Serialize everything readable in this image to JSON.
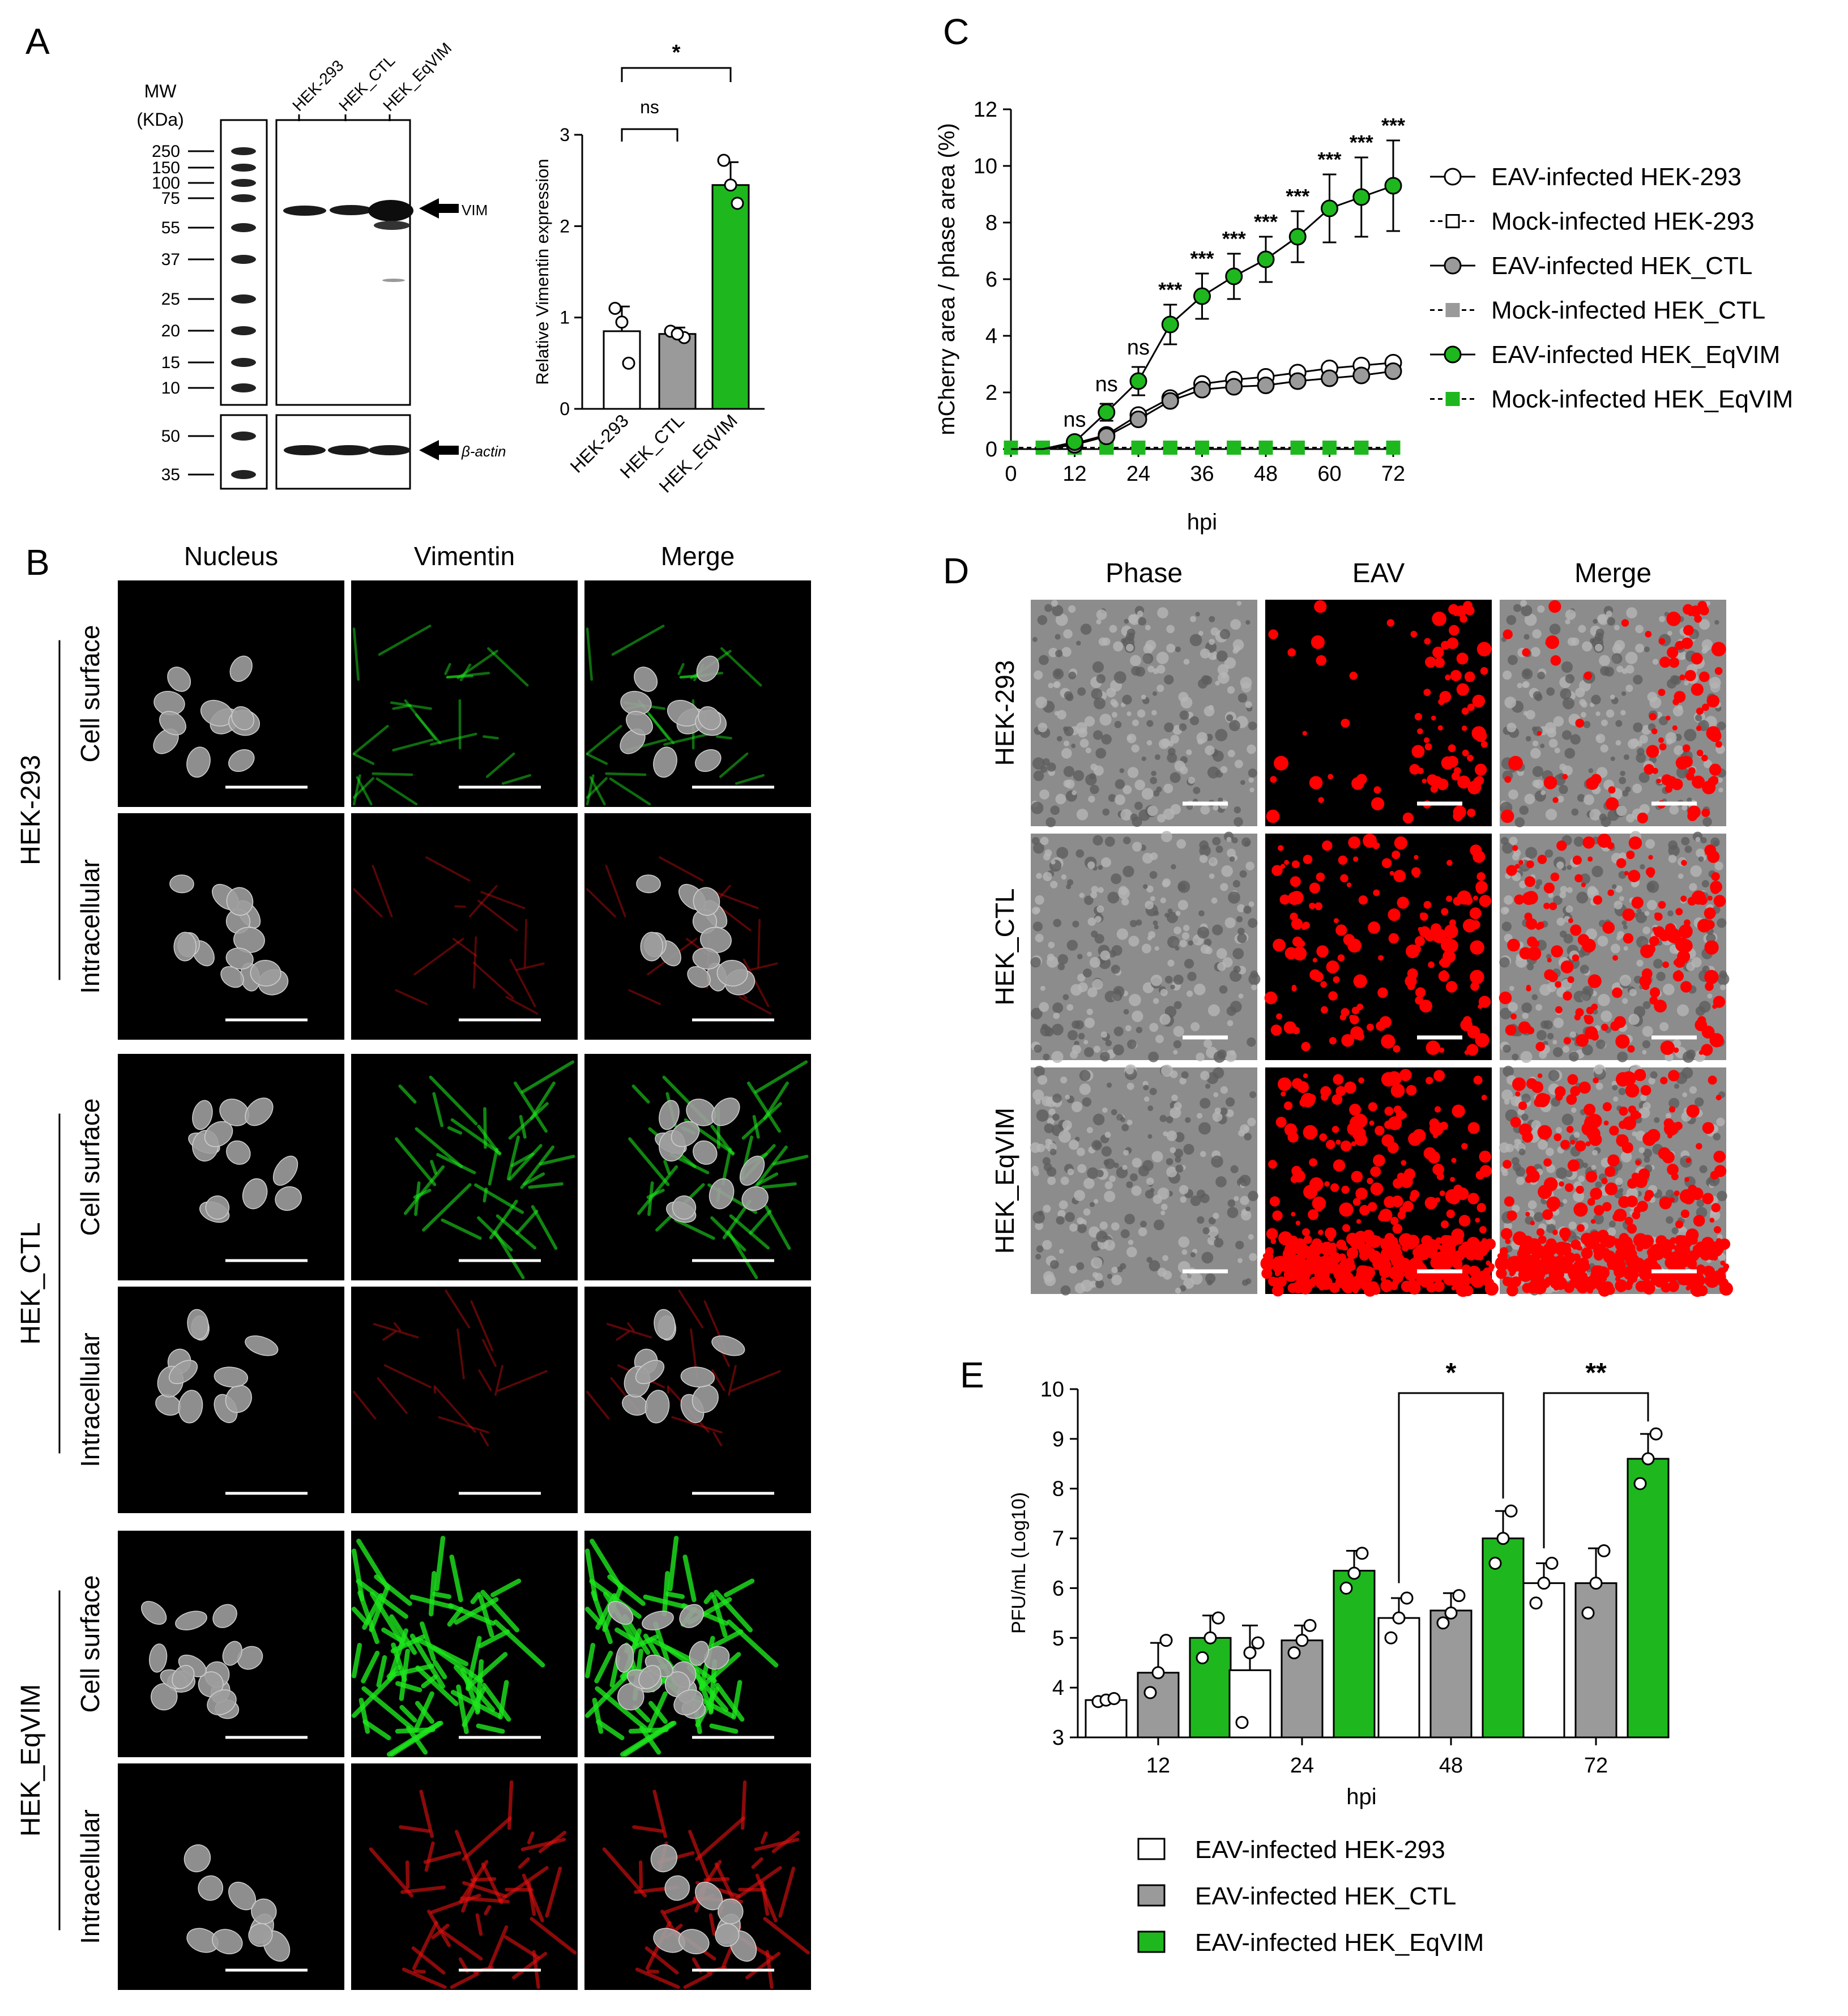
{
  "panels": {
    "A": "A",
    "B": "B",
    "C": "C",
    "D": "D",
    "E": "E"
  },
  "colors": {
    "green": "#1EB81E",
    "grey": "#9A9A9A",
    "white": "#FFFFFF",
    "red": "#FF0000",
    "black": "#000000"
  },
  "panel_a": {
    "mw_label_1": "MW",
    "mw_label_2": "(KDa)",
    "ladder_upper": [
      "250",
      "150",
      "100",
      "75",
      "55",
      "37",
      "25",
      "20",
      "15",
      "10"
    ],
    "ladder_lower": [
      "50",
      "35"
    ],
    "lanes": [
      "HEK-293",
      "HEK_CTL",
      "HEK_EqVIM"
    ],
    "band_vim": "VIM",
    "band_actin": "β-actin",
    "chart_data": {
      "type": "bar",
      "categories": [
        "HEK-293",
        "HEK_CTL",
        "HEK_EqVIM"
      ],
      "values": [
        0.85,
        0.82,
        2.45
      ],
      "errors": [
        0.27,
        0.07,
        0.25
      ],
      "points": [
        [
          1.1,
          0.5,
          0.95
        ],
        [
          0.85,
          0.78,
          0.82
        ],
        [
          2.72,
          2.25,
          2.45
        ]
      ],
      "colors": [
        "#FFFFFF",
        "#9A9A9A",
        "#1EB81E"
      ],
      "ylabel": "Relative Vimentin expression",
      "ylim": [
        0,
        3
      ],
      "yticks": [
        "0",
        "1",
        "2",
        "3"
      ],
      "sig": [
        {
          "from": 0,
          "to": 1,
          "label": "ns"
        },
        {
          "from": 0,
          "to": 2,
          "label": "*"
        }
      ]
    }
  },
  "panel_b": {
    "columns": [
      "Nucleus",
      "Vimentin",
      "Merge"
    ],
    "groups": [
      {
        "name": "HEK-293",
        "rows": [
          "Cell surface",
          "Intracellular"
        ]
      },
      {
        "name": "HEK_CTL",
        "rows": [
          "Cell surface",
          "Intracellular"
        ]
      },
      {
        "name": "HEK_EqVIM",
        "rows": [
          "Cell surface",
          "Intracellular"
        ]
      }
    ],
    "vimentin_density": [
      0.25,
      0.1,
      0.45,
      0.12,
      0.9,
      0.55
    ]
  },
  "panel_c": {
    "chart_data": {
      "type": "line",
      "x": [
        0,
        6,
        12,
        18,
        24,
        30,
        36,
        42,
        48,
        54,
        60,
        66,
        72
      ],
      "xlabel": "hpi",
      "ylabel": "mCherry area / phase area (%)",
      "xlim": [
        0,
        72
      ],
      "ylim": [
        0,
        12
      ],
      "xticks": [
        "0",
        "12",
        "24",
        "36",
        "48",
        "60",
        "72"
      ],
      "yticks": [
        "0",
        "2",
        "4",
        "6",
        "8",
        "10",
        "12"
      ],
      "series": [
        {
          "name": "EAV-infected HEK-293",
          "marker": "circle",
          "fill": "#FFFFFF",
          "dash": false,
          "values": [
            0,
            0,
            0.2,
            0.5,
            1.2,
            1.8,
            2.3,
            2.45,
            2.55,
            2.7,
            2.85,
            2.95,
            3.05
          ]
        },
        {
          "name": "Mock-infected HEK-293",
          "marker": "square",
          "fill": "#FFFFFF",
          "dash": true,
          "values": [
            0.05,
            0.05,
            0.05,
            0.05,
            0.05,
            0.05,
            0.05,
            0.05,
            0.05,
            0.05,
            0.05,
            0.05,
            0.05
          ]
        },
        {
          "name": "EAV-infected HEK_CTL",
          "marker": "circle",
          "fill": "#9A9A9A",
          "dash": false,
          "values": [
            0,
            0,
            0.15,
            0.45,
            1.05,
            1.7,
            2.1,
            2.2,
            2.25,
            2.4,
            2.5,
            2.6,
            2.75
          ]
        },
        {
          "name": "Mock-infected HEK_CTL",
          "marker": "square",
          "fill": "#9A9A9A",
          "dash": true,
          "values": [
            0.05,
            0.05,
            0.05,
            0.05,
            0.05,
            0.05,
            0.05,
            0.05,
            0.05,
            0.05,
            0.05,
            0.05,
            0.05
          ]
        },
        {
          "name": "EAV-infected HEK_EqVIM",
          "marker": "circle",
          "fill": "#1EB81E",
          "dash": false,
          "values": [
            0,
            0,
            0.25,
            1.3,
            2.4,
            4.4,
            5.4,
            6.1,
            6.7,
            7.5,
            8.5,
            8.9,
            9.3
          ],
          "errors": [
            0,
            0,
            0.1,
            0.3,
            0.5,
            0.7,
            0.8,
            0.8,
            0.8,
            0.9,
            1.2,
            1.4,
            1.6
          ]
        },
        {
          "name": "Mock-infected HEK_EqVIM",
          "marker": "square",
          "fill": "#1EB81E",
          "dash": true,
          "values": [
            0.05,
            0.05,
            0.05,
            0.05,
            0.05,
            0.05,
            0.05,
            0.05,
            0.05,
            0.05,
            0.05,
            0.05,
            0.05
          ]
        }
      ],
      "annotations": [
        {
          "x": 12,
          "label": "ns"
        },
        {
          "x": 18,
          "label": "ns"
        },
        {
          "x": 24,
          "label": "ns"
        },
        {
          "x": 30,
          "label": "***"
        },
        {
          "x": 36,
          "label": "***"
        },
        {
          "x": 42,
          "label": "***"
        },
        {
          "x": 48,
          "label": "***"
        },
        {
          "x": 54,
          "label": "***"
        },
        {
          "x": 60,
          "label": "***"
        },
        {
          "x": 66,
          "label": "***"
        },
        {
          "x": 72,
          "label": "***"
        }
      ],
      "legend": "right"
    }
  },
  "panel_d": {
    "columns": [
      "Phase",
      "EAV",
      "Merge"
    ],
    "rows": [
      "HEK-293",
      "HEK_CTL",
      "HEK_EqVIM"
    ],
    "infection_density": [
      0.15,
      0.3,
      1.0
    ]
  },
  "panel_e": {
    "chart_data": {
      "type": "bar",
      "categories": [
        "12",
        "24",
        "48",
        "72"
      ],
      "xlabel": "hpi",
      "ylabel": "PFU/mL (Log10)",
      "ylim": [
        3,
        10
      ],
      "yticks": [
        "3",
        "4",
        "5",
        "6",
        "7",
        "8",
        "9",
        "10"
      ],
      "series": [
        {
          "name": "EAV-infected HEK-293",
          "color": "#FFFFFF",
          "values": [
            3.75,
            4.35,
            5.4,
            6.1
          ],
          "errors": [
            0.05,
            0.9,
            0.4,
            0.4
          ],
          "points": [
            [
              3.72,
              3.75,
              3.78
            ],
            [
              3.3,
              4.7,
              4.9
            ],
            [
              5.0,
              5.4,
              5.8
            ],
            [
              5.7,
              6.1,
              6.5
            ]
          ]
        },
        {
          "name": "EAV-infected HEK_CTL",
          "color": "#9A9A9A",
          "values": [
            4.3,
            4.95,
            5.55,
            6.1
          ],
          "errors": [
            0.6,
            0.3,
            0.35,
            0.7
          ],
          "points": [
            [
              3.9,
              4.3,
              4.95
            ],
            [
              4.7,
              4.95,
              5.25
            ],
            [
              5.3,
              5.5,
              5.85
            ],
            [
              5.5,
              6.1,
              6.75
            ]
          ]
        },
        {
          "name": "EAV-infected HEK_EqVIM",
          "color": "#1EB81E",
          "values": [
            5.0,
            6.35,
            7.0,
            8.6
          ],
          "errors": [
            0.45,
            0.4,
            0.55,
            0.5
          ],
          "points": [
            [
              4.6,
              5.0,
              5.4
            ],
            [
              6.0,
              6.3,
              6.7
            ],
            [
              6.5,
              7.0,
              7.55
            ],
            [
              8.1,
              8.6,
              9.1
            ]
          ]
        }
      ],
      "sig": [
        {
          "category": "48",
          "label": "*"
        },
        {
          "category": "72",
          "label": "**"
        }
      ],
      "legend": "bottom"
    }
  }
}
